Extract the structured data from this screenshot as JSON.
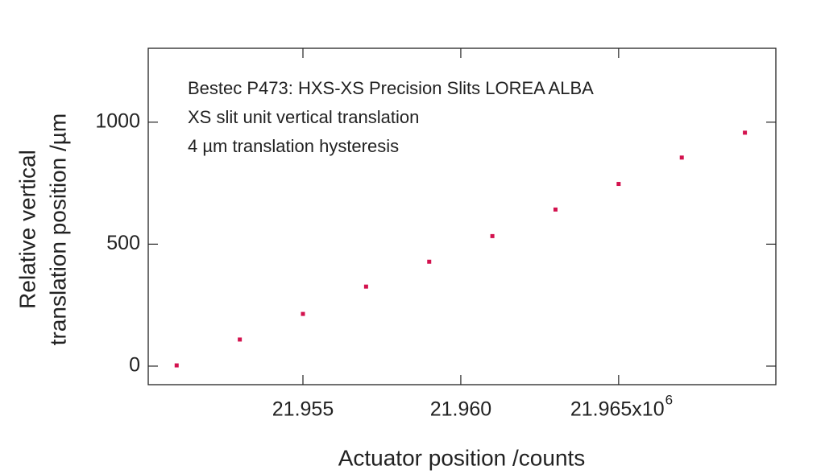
{
  "chart_data": {
    "type": "scatter",
    "annotations": [
      "Bestec P473: HXS-XS Precision Slits LOREA ALBA",
      "XS slit unit vertical translation",
      "4 µm translation hysteresis"
    ],
    "x_label": "Actuator position /counts",
    "y_label": [
      "Relative vertical",
      "translation position  /µm"
    ],
    "x": [
      21.951,
      21.953,
      21.955,
      21.957,
      21.959,
      21.961,
      21.963,
      21.965,
      21.967,
      21.969
    ],
    "series": [
      {
        "color": "#d3124e",
        "values": [
          3,
          109,
          214,
          326,
          428,
          533,
          642,
          747,
          855,
          957
        ]
      }
    ],
    "xlim": [
      21.9501,
      21.96998
    ],
    "xticks": [
      {
        "value": 21.955,
        "label": "21.955"
      },
      {
        "value": 21.96,
        "label": "21.960"
      },
      {
        "value": 21.965,
        "label": "21.965x10",
        "superscript": "6"
      }
    ],
    "ylim": [
      -76,
      1303
    ],
    "yticks": [
      0,
      500,
      1000
    ]
  }
}
